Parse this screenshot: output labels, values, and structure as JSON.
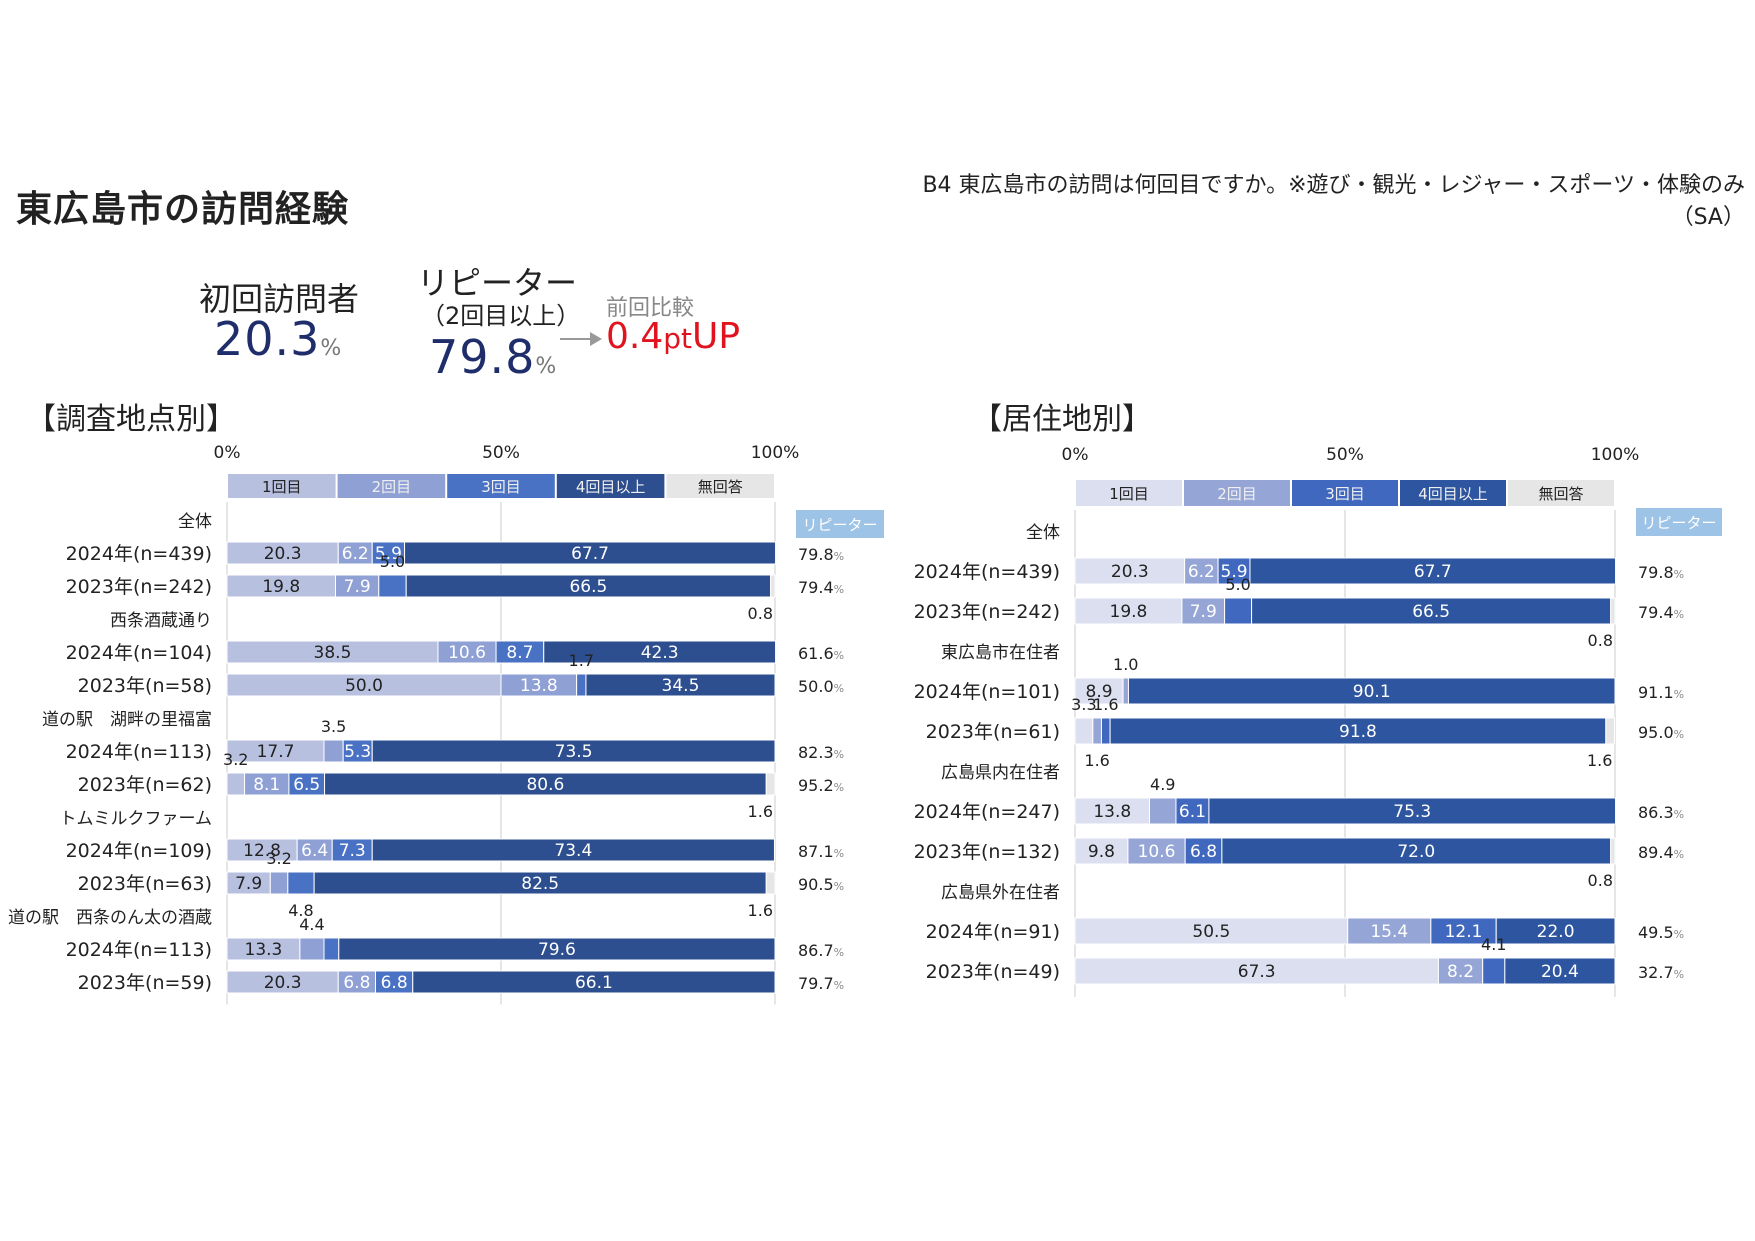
{
  "header": {
    "title": "東広島市の訪問経験",
    "question": "B4 東広島市の訪問は何回目ですか。※遊び・観光・レジャー・スポーツ・体験のみ",
    "question_sa": "（SA）"
  },
  "kpi": {
    "first_label": "初回訪問者",
    "first_value": "20.3",
    "repeater_label": "リピーター",
    "repeater_sub": "（2回目以上）",
    "repeater_value": "79.8",
    "unit": "%",
    "prev_label": "前回比較",
    "prev_value": "0.4",
    "prev_suffix_pt": "pt",
    "prev_suffix_up": "UP"
  },
  "colors": {
    "first": "#b8c0e0",
    "second": "#8ea0d4",
    "third": "#4a72c4",
    "fourth": "#2e4f8f",
    "noanswer": "#e6e6e6",
    "repeater_badge": "#9dc3e6",
    "right_first": "#dcdff0",
    "right_second": "#95a6d6",
    "right_third": "#3f68be",
    "right_fourth": "#2e56a0"
  },
  "chart_data": [
    {
      "type": "bar",
      "section": "【調査地点別】",
      "xticks": [
        "0%",
        "50%",
        "100%"
      ],
      "legend": [
        "1回目",
        "2回目",
        "3回目",
        "4回目以上",
        "無回答"
      ],
      "repeater_label": "リピーター",
      "unit": "%",
      "rows": [
        {
          "kind": "group",
          "label": "全体"
        },
        {
          "kind": "bar",
          "label": "2024年(n=439)",
          "values": [
            20.3,
            6.2,
            5.9,
            67.7,
            0
          ],
          "repeater": "79.8"
        },
        {
          "kind": "bar",
          "label": "2023年(n=242)",
          "values": [
            19.8,
            7.9,
            5.0,
            66.5,
            0.8
          ],
          "repeater": "79.4"
        },
        {
          "kind": "group",
          "label": "西条酒蔵通り"
        },
        {
          "kind": "bar",
          "label": "2024年(n=104)",
          "values": [
            38.5,
            10.6,
            8.7,
            42.3,
            0
          ],
          "repeater": "61.6"
        },
        {
          "kind": "bar",
          "label": "2023年(n=58)",
          "values": [
            50.0,
            13.8,
            1.7,
            34.5,
            0
          ],
          "repeater": "50.0"
        },
        {
          "kind": "group",
          "label": "道の駅　湖畔の里福富"
        },
        {
          "kind": "bar",
          "label": "2024年(n=113)",
          "values": [
            17.7,
            3.5,
            5.3,
            73.5,
            0
          ],
          "repeater": "82.3"
        },
        {
          "kind": "bar",
          "label": "2023年(n=62)",
          "values": [
            3.2,
            8.1,
            6.5,
            80.6,
            1.6
          ],
          "repeater": "95.2"
        },
        {
          "kind": "group",
          "label": "トムミルクファーム"
        },
        {
          "kind": "bar",
          "label": "2024年(n=109)",
          "values": [
            12.8,
            6.4,
            7.3,
            73.4,
            0
          ],
          "repeater": "87.1"
        },
        {
          "kind": "bar",
          "label": "2023年(n=63)",
          "values": [
            7.9,
            3.2,
            4.8,
            82.5,
            1.6
          ],
          "repeater": "90.5"
        },
        {
          "kind": "group",
          "label": "道の駅　西条のん太の酒蔵"
        },
        {
          "kind": "bar",
          "label": "2024年(n=113)",
          "values": [
            13.3,
            4.4,
            2.7,
            79.6,
            0
          ],
          "repeater": "86.7"
        },
        {
          "kind": "bar",
          "label": "2023年(n=59)",
          "values": [
            20.3,
            6.8,
            6.8,
            66.1,
            0
          ],
          "repeater": "79.7"
        }
      ]
    },
    {
      "type": "bar",
      "section": "【居住地別】",
      "xticks": [
        "0%",
        "50%",
        "100%"
      ],
      "legend": [
        "1回目",
        "2回目",
        "3回目",
        "4回目以上",
        "無回答"
      ],
      "repeater_label": "リピーター",
      "unit": "%",
      "rows": [
        {
          "kind": "group",
          "label": "全体"
        },
        {
          "kind": "bar",
          "label": "2024年(n=439)",
          "values": [
            20.3,
            6.2,
            5.9,
            67.7,
            0
          ],
          "repeater": "79.8"
        },
        {
          "kind": "bar",
          "label": "2023年(n=242)",
          "values": [
            19.8,
            7.9,
            5.0,
            66.5,
            0.8
          ],
          "repeater": "79.4"
        },
        {
          "kind": "group",
          "label": "東広島市在住者"
        },
        {
          "kind": "bar",
          "label": "2024年(n=101)",
          "values": [
            8.9,
            1.0,
            0,
            90.1,
            0
          ],
          "repeater": "91.1"
        },
        {
          "kind": "bar",
          "label": "2023年(n=61)",
          "values": [
            3.3,
            1.6,
            1.6,
            91.8,
            1.6
          ],
          "repeater": "95.0"
        },
        {
          "kind": "group",
          "label": "広島県内在住者"
        },
        {
          "kind": "bar",
          "label": "2024年(n=247)",
          "values": [
            13.8,
            4.9,
            6.1,
            75.3,
            0
          ],
          "repeater": "86.3"
        },
        {
          "kind": "bar",
          "label": "2023年(n=132)",
          "values": [
            9.8,
            10.6,
            6.8,
            72.0,
            0.8
          ],
          "repeater": "89.4"
        },
        {
          "kind": "group",
          "label": "広島県外在住者"
        },
        {
          "kind": "bar",
          "label": "2024年(n=91)",
          "values": [
            50.5,
            15.4,
            12.1,
            22.0,
            0
          ],
          "repeater": "49.5"
        },
        {
          "kind": "bar",
          "label": "2023年(n=49)",
          "values": [
            67.3,
            8.2,
            4.1,
            20.4,
            0
          ],
          "repeater": "32.7"
        }
      ]
    }
  ]
}
